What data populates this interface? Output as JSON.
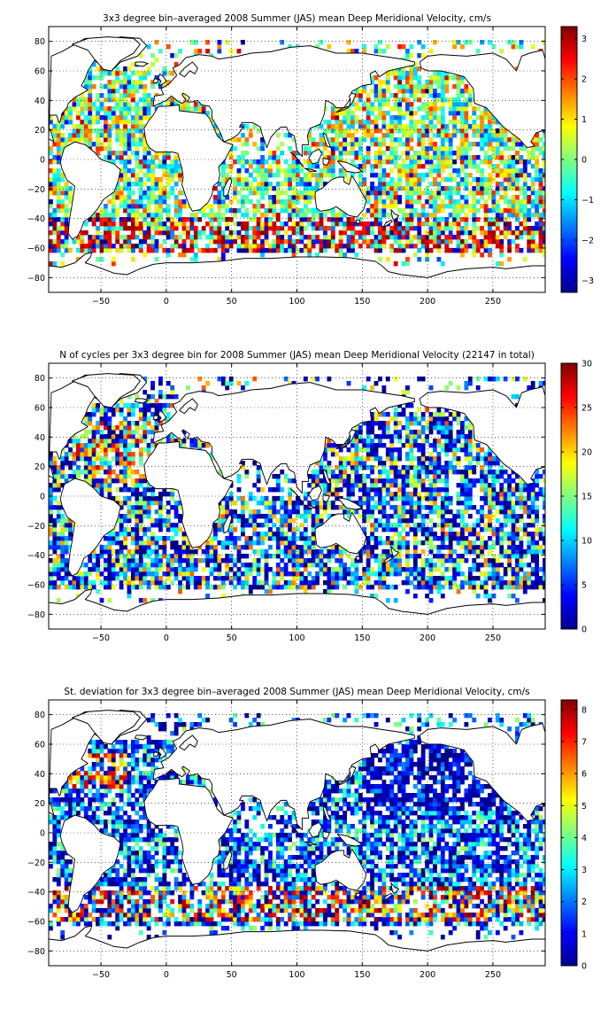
{
  "chart_data": [
    {
      "type": "heatmap",
      "title": "3x3 degree bin–averaged 2008 Summer (JAS) mean Deep Meridional Velocity, cm/s",
      "xlim": [
        -90,
        290
      ],
      "ylim": [
        -90,
        90
      ],
      "xticks": [
        -50,
        0,
        50,
        100,
        150,
        200,
        250
      ],
      "yticks": [
        80,
        60,
        40,
        20,
        0,
        -20,
        -40,
        -60,
        -80
      ],
      "grid": true,
      "bin_size_deg": 3,
      "colormap": "jet",
      "clim": [
        -3.3,
        3.3
      ],
      "colorbar_ticks": [
        3,
        2,
        1,
        0,
        -1,
        -2,
        -3
      ],
      "field": "deep_meridional_velocity_cm_s",
      "samples": [
        {
          "lon": -70,
          "lat": -58,
          "value": 3.1
        },
        {
          "lon": -40,
          "lat": -45,
          "value": 3.0
        },
        {
          "lon": 0,
          "lat": -45,
          "value": 2.8
        },
        {
          "lon": 80,
          "lat": -45,
          "value": 3.0
        },
        {
          "lon": 180,
          "lat": -55,
          "value": 3.1
        },
        {
          "lon": 200,
          "lat": 30,
          "value": 0.4
        },
        {
          "lon": 250,
          "lat": 30,
          "value": 0.5
        },
        {
          "lon": -40,
          "lat": 30,
          "value": 0.9
        },
        {
          "lon": 160,
          "lat": 0,
          "value": -0.6
        },
        {
          "lon": 60,
          "lat": -20,
          "value": -0.7
        }
      ]
    },
    {
      "type": "heatmap",
      "title": "N of cycles per 3x3 degree bin for 2008 Summer (JAS) mean Deep Meridional Velocity (22147 in total)",
      "xlim": [
        -90,
        290
      ],
      "ylim": [
        -90,
        90
      ],
      "xticks": [
        -50,
        0,
        50,
        100,
        150,
        200,
        250
      ],
      "yticks": [
        80,
        60,
        40,
        20,
        0,
        -20,
        -40,
        -60,
        -80
      ],
      "grid": true,
      "bin_size_deg": 3,
      "colormap": "jet",
      "clim": [
        0,
        30
      ],
      "colorbar_ticks": [
        30,
        25,
        20,
        15,
        10,
        5,
        0
      ],
      "field": "cycle_count",
      "total_cycles": 22147,
      "samples": [
        {
          "lon": -40,
          "lat": 20,
          "value": 15
        },
        {
          "lon": 180,
          "lat": 30,
          "value": 5
        },
        {
          "lon": 80,
          "lat": -40,
          "value": 3
        },
        {
          "lon": 200,
          "lat": -20,
          "value": 7
        },
        {
          "lon": -20,
          "lat": 30,
          "value": 20
        }
      ]
    },
    {
      "type": "heatmap",
      "title": "St. deviation for 3x3 degree bin–averaged 2008 Summer (JAS) mean Deep Meridional Velocity, cm/s",
      "xlim": [
        -90,
        290
      ],
      "ylim": [
        -90,
        90
      ],
      "xticks": [
        -50,
        0,
        50,
        100,
        150,
        200,
        250
      ],
      "yticks": [
        80,
        60,
        40,
        20,
        0,
        -20,
        -40,
        -60,
        -80
      ],
      "grid": true,
      "bin_size_deg": 3,
      "colormap": "jet",
      "clim": [
        0,
        8.3
      ],
      "colorbar_ticks": [
        8,
        7,
        6,
        5,
        4,
        3,
        2,
        1,
        0
      ],
      "field": "std_deep_meridional_velocity_cm_s",
      "samples": [
        {
          "lon": -40,
          "lat": -45,
          "value": 8.0
        },
        {
          "lon": 40,
          "lat": -40,
          "value": 7.5
        },
        {
          "lon": 180,
          "lat": -50,
          "value": 7.8
        },
        {
          "lon": 200,
          "lat": 40,
          "value": 0.8
        },
        {
          "lon": -40,
          "lat": 40,
          "value": 7.0
        },
        {
          "lon": 150,
          "lat": 0,
          "value": 2.5
        }
      ]
    }
  ]
}
